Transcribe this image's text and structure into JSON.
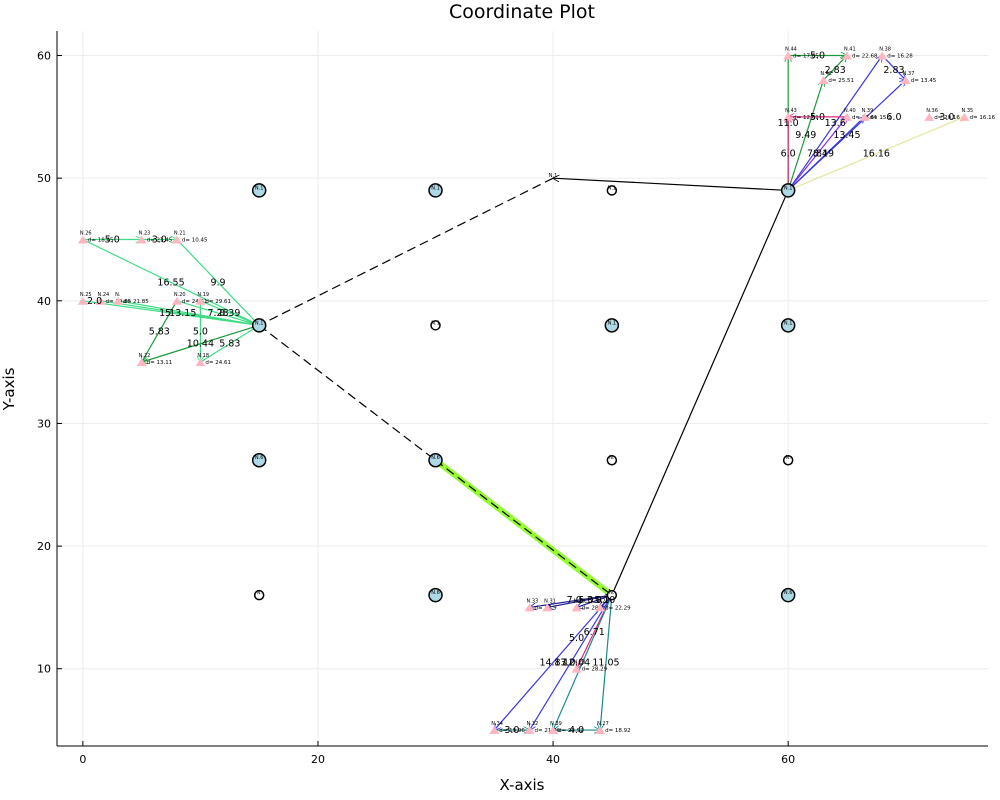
{
  "chart_data": {
    "type": "scatter",
    "title": "Coordinate Plot",
    "xlabel": "X-axis",
    "ylabel": "Y-axis",
    "xlim": [
      -2.2,
      77
    ],
    "ylim": [
      3.7,
      62
    ],
    "xticks": [
      0,
      20,
      40,
      60
    ],
    "yticks": [
      10,
      20,
      30,
      40,
      50,
      60
    ],
    "grid": true,
    "legend": "none",
    "colors": {
      "hub_fill": "#add8e6",
      "target_fill": "#ffb6c1",
      "route": "#000000",
      "highlight": "#7CFC00"
    },
    "hub_nodes": [
      {
        "label": "N.1",
        "x": 15,
        "y": 49,
        "size": "large"
      },
      {
        "label": "N.1",
        "x": 30,
        "y": 49,
        "size": "large"
      },
      {
        "label": "N.1",
        "x": 45,
        "y": 49,
        "size": "small"
      },
      {
        "label": "N.1",
        "x": 60,
        "y": 49,
        "size": "large"
      },
      {
        "label": "N.1",
        "x": 15,
        "y": 38,
        "size": "large"
      },
      {
        "label": "N.1",
        "x": 30,
        "y": 38,
        "size": "small"
      },
      {
        "label": "N.1",
        "x": 45,
        "y": 38,
        "size": "large"
      },
      {
        "label": "N.1",
        "x": 60,
        "y": 38,
        "size": "large"
      },
      {
        "label": "N.6",
        "x": 15,
        "y": 27,
        "size": "large"
      },
      {
        "label": "N.6",
        "x": 30,
        "y": 27,
        "size": "large"
      },
      {
        "label": "N.",
        "x": 45,
        "y": 27,
        "size": "small"
      },
      {
        "label": "N.",
        "x": 60,
        "y": 27,
        "size": "small"
      },
      {
        "label": "N.",
        "x": 15,
        "y": 16,
        "size": "small"
      },
      {
        "label": "N.6",
        "x": 30,
        "y": 16,
        "size": "large"
      },
      {
        "label": "N.",
        "x": 45,
        "y": 16,
        "size": "small"
      },
      {
        "label": "N.6",
        "x": 60,
        "y": 16,
        "size": "large"
      }
    ],
    "target_nodes": [
      {
        "label": "N.26",
        "x": 0,
        "y": 45,
        "d": "d= 18.45"
      },
      {
        "label": "N.23",
        "x": 5,
        "y": 45,
        "d": "d= 23.45"
      },
      {
        "label": "N.21",
        "x": 8,
        "y": 45,
        "d": "d= 10.45"
      },
      {
        "label": "N.25",
        "x": 0,
        "y": 40,
        "d": ""
      },
      {
        "label": "N.24",
        "x": 1.5,
        "y": 40,
        "d": "d= 19.85"
      },
      {
        "label": "N.",
        "x": 3,
        "y": 40,
        "d": "d= 21.85"
      },
      {
        "label": "N.20",
        "x": 8,
        "y": 40,
        "d": "d= 24.61"
      },
      {
        "label": "N.19",
        "x": 10,
        "y": 40,
        "d": "d= 29.61"
      },
      {
        "label": "N.22",
        "x": 5,
        "y": 35,
        "d": "d= 13.11"
      },
      {
        "label": "N.18",
        "x": 10,
        "y": 35,
        "d": "d= 24.61"
      },
      {
        "label": "N.44",
        "x": 60,
        "y": 60,
        "d": "d= 17.65"
      },
      {
        "label": "N.41",
        "x": 65,
        "y": 60,
        "d": "d= 22.68"
      },
      {
        "label": "N.38",
        "x": 68,
        "y": 60,
        "d": "d= 16.28"
      },
      {
        "label": "N.42",
        "x": 63,
        "y": 58,
        "d": "d= 25.51"
      },
      {
        "label": "N.37",
        "x": 70,
        "y": 58,
        "d": "d= 13.45"
      },
      {
        "label": "N.43",
        "x": 60,
        "y": 55,
        "d": "d= 12.61"
      },
      {
        "label": "N.40",
        "x": 65,
        "y": 55,
        "d": "d= 16.61"
      },
      {
        "label": "N.39",
        "x": 66.5,
        "y": 55,
        "d": "d= 15.1"
      },
      {
        "label": "N.36",
        "x": 72,
        "y": 55,
        "d": "d= 20.16"
      },
      {
        "label": "N.35",
        "x": 75,
        "y": 55,
        "d": "d= 16.16"
      },
      {
        "label": "N.33",
        "x": 38,
        "y": 15,
        "d": "d= 17.9"
      },
      {
        "label": "N.31",
        "x": 39.5,
        "y": 15,
        "d": ""
      },
      {
        "label": "N.30",
        "x": 42,
        "y": 15,
        "d": "d= 28.9"
      },
      {
        "label": "N.29",
        "x": 44,
        "y": 15,
        "d": "d= 22.29"
      },
      {
        "label": "N.28",
        "x": 42,
        "y": 10,
        "d": "d= 28.29"
      },
      {
        "label": "N.34",
        "x": 35,
        "y": 5,
        "d": "d= 19.96"
      },
      {
        "label": "N.32",
        "x": 38,
        "y": 5,
        "d": "d= 21.96"
      },
      {
        "label": "N.39",
        "x": 40,
        "y": 5,
        "d": "d= 23.92"
      },
      {
        "label": "N.27",
        "x": 44,
        "y": 5,
        "d": "d= 18.92"
      }
    ],
    "route_arrows": [
      {
        "x1": 30,
        "y1": 27,
        "x2": 45,
        "y2": 16,
        "style": "dashed"
      },
      {
        "x1": 45,
        "y1": 16,
        "x2": 60,
        "y2": 49,
        "style": "solid"
      },
      {
        "x1": 60,
        "y1": 49,
        "x2": 40,
        "y2": 50,
        "style": "solid"
      },
      {
        "x1": 40,
        "y1": 50,
        "x2": 15,
        "y2": 38,
        "style": "dashed"
      },
      {
        "x1": 15,
        "y1": 38,
        "x2": 30,
        "y2": 27,
        "style": "dashed"
      }
    ],
    "route_node": {
      "label": "N.1",
      "x": 40,
      "y": 50
    },
    "spoke_arrows": [
      {
        "x1": 0,
        "y1": 45,
        "x2": 15,
        "y2": 38,
        "color": "#3ddc84"
      },
      {
        "x1": 8,
        "y1": 45,
        "x2": 15,
        "y2": 38,
        "color": "#3ddc84"
      },
      {
        "x1": 0,
        "y1": 45,
        "x2": 5,
        "y2": 45,
        "color": "#3ddc84"
      },
      {
        "x1": 5,
        "y1": 45,
        "x2": 8,
        "y2": 45,
        "color": "#3ddc84"
      },
      {
        "x1": 0,
        "y1": 40,
        "x2": 15,
        "y2": 38,
        "color": "#3ddc84"
      },
      {
        "x1": 1.5,
        "y1": 40,
        "x2": 15,
        "y2": 38,
        "color": "#3ddc84"
      },
      {
        "x1": 3,
        "y1": 40,
        "x2": 15,
        "y2": 38,
        "color": "#3ddc84"
      },
      {
        "x1": 8,
        "y1": 40,
        "x2": 15,
        "y2": 38,
        "color": "#3ddc84"
      },
      {
        "x1": 10,
        "y1": 40,
        "x2": 15,
        "y2": 38,
        "color": "#3ddc84"
      },
      {
        "x1": 10,
        "y1": 40,
        "x2": 10,
        "y2": 35,
        "color": "#3ddc84"
      },
      {
        "x1": 15,
        "y1": 38,
        "x2": 5,
        "y2": 35,
        "color": "#1a9a3a"
      },
      {
        "x1": 10,
        "y1": 35,
        "x2": 15,
        "y2": 38,
        "color": "#3ddc84"
      },
      {
        "x1": 8,
        "y1": 40,
        "x2": 5,
        "y2": 35,
        "color": "#1a9a3a"
      },
      {
        "x1": 60,
        "y1": 49,
        "x2": 60,
        "y2": 60,
        "color": "#1a9a3a"
      },
      {
        "x1": 60,
        "y1": 60,
        "x2": 65,
        "y2": 60,
        "color": "#1a9a3a"
      },
      {
        "x1": 63,
        "y1": 58,
        "x2": 65,
        "y2": 60,
        "color": "#1a9a3a"
      },
      {
        "x1": 60,
        "y1": 49,
        "x2": 63,
        "y2": 58,
        "color": "#1a9a3a"
      },
      {
        "x1": 60,
        "y1": 49,
        "x2": 68,
        "y2": 60,
        "color": "#3a3adc"
      },
      {
        "x1": 60,
        "y1": 49,
        "x2": 70,
        "y2": 58,
        "color": "#3a3adc"
      },
      {
        "x1": 68,
        "y1": 60,
        "x2": 70,
        "y2": 58,
        "color": "#3a3adc"
      },
      {
        "x1": 60,
        "y1": 49,
        "x2": 60,
        "y2": 55,
        "color": "#e0287d"
      },
      {
        "x1": 65,
        "y1": 55,
        "x2": 60,
        "y2": 55,
        "color": "#e0287d"
      },
      {
        "x1": 60,
        "y1": 49,
        "x2": 65,
        "y2": 55,
        "color": "#8a2be2"
      },
      {
        "x1": 60,
        "y1": 49,
        "x2": 66.5,
        "y2": 55,
        "color": "#3a3adc"
      },
      {
        "x1": 60,
        "y1": 49,
        "x2": 75,
        "y2": 55,
        "color": "#e5e5a0"
      },
      {
        "x1": 45,
        "y1": 16,
        "x2": 38,
        "y2": 15,
        "color": "#1c1c8c"
      },
      {
        "x1": 45,
        "y1": 16,
        "x2": 39.5,
        "y2": 15,
        "color": "#1c1c8c"
      },
      {
        "x1": 45,
        "y1": 16,
        "x2": 42,
        "y2": 15,
        "color": "#1c1c8c"
      },
      {
        "x1": 45,
        "y1": 16,
        "x2": 44,
        "y2": 15,
        "color": "#1c1c8c"
      },
      {
        "x1": 45,
        "y1": 16,
        "x2": 42,
        "y2": 10,
        "color": "#e0287d"
      },
      {
        "x1": 45,
        "y1": 16,
        "x2": 35,
        "y2": 5,
        "color": "#3a3adc"
      },
      {
        "x1": 45,
        "y1": 16,
        "x2": 38,
        "y2": 5,
        "color": "#3a3adc"
      },
      {
        "x1": 45,
        "y1": 16,
        "x2": 40,
        "y2": 5,
        "color": "#1a8a8a"
      },
      {
        "x1": 45,
        "y1": 16,
        "x2": 44,
        "y2": 5,
        "color": "#1a8a8a"
      },
      {
        "x1": 35,
        "y1": 5,
        "x2": 38,
        "y2": 5,
        "color": "#1a8a8a"
      },
      {
        "x1": 40,
        "y1": 5,
        "x2": 44,
        "y2": 5,
        "color": "#1a8a8a"
      }
    ],
    "edge_labels": [
      {
        "text": "5.0",
        "x": 2.5,
        "y": 45
      },
      {
        "text": "3.0",
        "x": 6.5,
        "y": 45
      },
      {
        "text": "16.55",
        "x": 7.5,
        "y": 41.5
      },
      {
        "text": "9.9",
        "x": 11.5,
        "y": 41.5
      },
      {
        "text": "2.0",
        "x": 1,
        "y": 40
      },
      {
        "text": "15",
        "x": 7,
        "y": 39
      },
      {
        "text": "13.15",
        "x": 8.5,
        "y": 39
      },
      {
        "text": "7.28",
        "x": 11.5,
        "y": 39
      },
      {
        "text": "8.39",
        "x": 12.5,
        "y": 39
      },
      {
        "text": "5.83",
        "x": 6.5,
        "y": 37.5
      },
      {
        "text": "5.0",
        "x": 10,
        "y": 37.5
      },
      {
        "text": "10.44",
        "x": 10,
        "y": 36.5
      },
      {
        "text": "5.83",
        "x": 12.5,
        "y": 36.5
      },
      {
        "text": "5.0",
        "x": 62.5,
        "y": 60
      },
      {
        "text": "2.83",
        "x": 64,
        "y": 58.8
      },
      {
        "text": "2.83",
        "x": 69,
        "y": 58.8
      },
      {
        "text": "11.0",
        "x": 60,
        "y": 54.5
      },
      {
        "text": "5.0",
        "x": 62.5,
        "y": 55
      },
      {
        "text": "13.6",
        "x": 64,
        "y": 54.5
      },
      {
        "text": "6.0",
        "x": 69,
        "y": 55
      },
      {
        "text": "3.0",
        "x": 73.5,
        "y": 55
      },
      {
        "text": "9.49",
        "x": 61.5,
        "y": 53.5
      },
      {
        "text": "13.45",
        "x": 65,
        "y": 53.5
      },
      {
        "text": "6.0",
        "x": 60,
        "y": 52
      },
      {
        "text": "7.81",
        "x": 62.5,
        "y": 52
      },
      {
        "text": "8.49",
        "x": 63,
        "y": 52
      },
      {
        "text": "16.16",
        "x": 67.5,
        "y": 52
      },
      {
        "text": "7.0",
        "x": 41.8,
        "y": 15.6
      },
      {
        "text": "5.0",
        "x": 42.8,
        "y": 15.6
      },
      {
        "text": "3.0",
        "x": 43.5,
        "y": 15.6
      },
      {
        "text": "5.10",
        "x": 44.4,
        "y": 15.6
      },
      {
        "text": "5.0",
        "x": 42,
        "y": 12.5
      },
      {
        "text": "6.71",
        "x": 43.5,
        "y": 13
      },
      {
        "text": "14.87",
        "x": 40,
        "y": 10.5
      },
      {
        "text": "13.0",
        "x": 41,
        "y": 10.5
      },
      {
        "text": "12.04",
        "x": 42,
        "y": 10.5
      },
      {
        "text": "11.05",
        "x": 44.5,
        "y": 10.5
      },
      {
        "text": "3.0",
        "x": 36.5,
        "y": 5
      },
      {
        "text": "4.0",
        "x": 42,
        "y": 5
      }
    ]
  }
}
